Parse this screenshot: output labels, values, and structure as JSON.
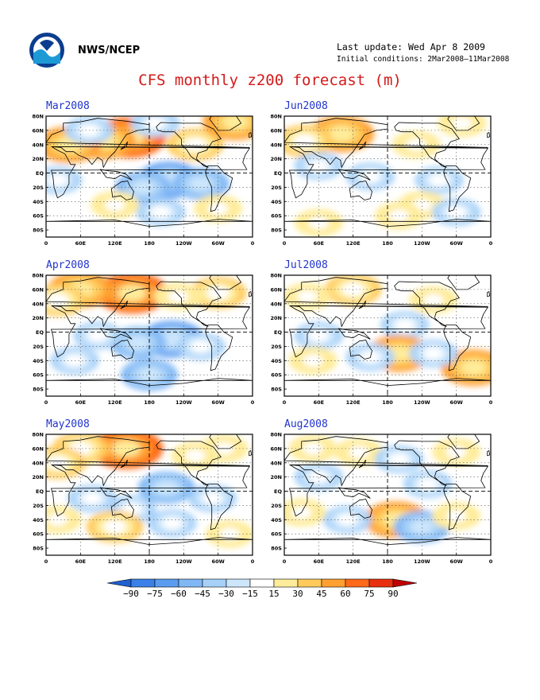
{
  "header": {
    "agency": "NWS/NCEP",
    "last_update": "Last update: Wed Apr 8 2009",
    "initial_conditions": "Initial conditions: 2Mar2008–11Mar2008",
    "title": "CFS monthly z200 forecast (m)"
  },
  "colors": {
    "land_outline": "#000000",
    "title": "#d41a1a",
    "panel_title": "#2233cc"
  },
  "map_axis": {
    "lat_labels": [
      "80N",
      "60N",
      "40N",
      "20N",
      "EQ",
      "20S",
      "40S",
      "60S",
      "80S"
    ],
    "lon_labels": [
      "0",
      "60E",
      "120E",
      "180",
      "120W",
      "60W",
      "0"
    ]
  },
  "panels": [
    {
      "label": "Mar2008",
      "anomalies": [
        {
          "lon": 145,
          "lat": 50,
          "v": 75
        },
        {
          "lon": 100,
          "lat": 45,
          "v": 60
        },
        {
          "lon": 40,
          "lat": 40,
          "v": 60
        },
        {
          "lon": 75,
          "lat": 60,
          "v": -30
        },
        {
          "lon": 260,
          "lat": 40,
          "v": 45
        },
        {
          "lon": 330,
          "lat": 72,
          "v": 60
        },
        {
          "lon": 190,
          "lat": 70,
          "v": -30
        },
        {
          "lon": 215,
          "lat": -10,
          "v": -60
        },
        {
          "lon": 270,
          "lat": -15,
          "v": -45
        },
        {
          "lon": 170,
          "lat": -20,
          "v": -45
        },
        {
          "lon": 200,
          "lat": -55,
          "v": -30
        },
        {
          "lon": 120,
          "lat": -45,
          "v": 30
        },
        {
          "lon": 300,
          "lat": -50,
          "v": 30
        },
        {
          "lon": 20,
          "lat": -10,
          "v": -30
        }
      ]
    },
    {
      "label": "Jun2008",
      "anomalies": [
        {
          "lon": 100,
          "lat": 55,
          "v": 60
        },
        {
          "lon": 35,
          "lat": 45,
          "v": 45
        },
        {
          "lon": 230,
          "lat": 40,
          "v": 30
        },
        {
          "lon": 310,
          "lat": 70,
          "v": 30
        },
        {
          "lon": 60,
          "lat": 10,
          "v": -30
        },
        {
          "lon": 150,
          "lat": -5,
          "v": -30
        },
        {
          "lon": 270,
          "lat": -10,
          "v": -30
        },
        {
          "lon": 240,
          "lat": -45,
          "v": 30
        },
        {
          "lon": 60,
          "lat": -70,
          "v": 30
        },
        {
          "lon": 300,
          "lat": -55,
          "v": -30
        },
        {
          "lon": 200,
          "lat": -60,
          "v": 30
        }
      ]
    },
    {
      "label": "Apr2008",
      "anomalies": [
        {
          "lon": 150,
          "lat": 55,
          "v": 75
        },
        {
          "lon": 60,
          "lat": 60,
          "v": 60
        },
        {
          "lon": 20,
          "lat": 45,
          "v": 45
        },
        {
          "lon": 300,
          "lat": 55,
          "v": 45
        },
        {
          "lon": 230,
          "lat": 50,
          "v": 30
        },
        {
          "lon": 220,
          "lat": -10,
          "v": -60
        },
        {
          "lon": 160,
          "lat": -15,
          "v": -45
        },
        {
          "lon": 90,
          "lat": -5,
          "v": -30
        },
        {
          "lon": 270,
          "lat": -20,
          "v": -30
        },
        {
          "lon": 50,
          "lat": -40,
          "v": -30
        },
        {
          "lon": 180,
          "lat": -60,
          "v": -45
        }
      ]
    },
    {
      "label": "Jul2008",
      "anomalies": [
        {
          "lon": 120,
          "lat": 60,
          "v": 45
        },
        {
          "lon": 40,
          "lat": 50,
          "v": 30
        },
        {
          "lon": 260,
          "lat": 45,
          "v": 30
        },
        {
          "lon": 210,
          "lat": 10,
          "v": -30
        },
        {
          "lon": 60,
          "lat": -5,
          "v": -30
        },
        {
          "lon": 200,
          "lat": -30,
          "v": 60
        },
        {
          "lon": 330,
          "lat": -50,
          "v": 60
        },
        {
          "lon": 150,
          "lat": -35,
          "v": -30
        },
        {
          "lon": 50,
          "lat": -40,
          "v": 30
        },
        {
          "lon": 260,
          "lat": -30,
          "v": -30
        }
      ]
    },
    {
      "label": "May2008",
      "anomalies": [
        {
          "lon": 140,
          "lat": 60,
          "v": 75
        },
        {
          "lon": 60,
          "lat": 60,
          "v": 45
        },
        {
          "lon": 20,
          "lat": 40,
          "v": 45
        },
        {
          "lon": 310,
          "lat": 60,
          "v": 30
        },
        {
          "lon": 260,
          "lat": 50,
          "v": 30
        },
        {
          "lon": 210,
          "lat": 5,
          "v": -45
        },
        {
          "lon": 150,
          "lat": -25,
          "v": -30
        },
        {
          "lon": 80,
          "lat": -10,
          "v": -30
        },
        {
          "lon": 290,
          "lat": -10,
          "v": -30
        },
        {
          "lon": 120,
          "lat": -50,
          "v": 45
        },
        {
          "lon": 220,
          "lat": -45,
          "v": -30
        },
        {
          "lon": 20,
          "lat": -40,
          "v": 30
        },
        {
          "lon": 320,
          "lat": -60,
          "v": 30
        }
      ]
    },
    {
      "label": "Aug2008",
      "anomalies": [
        {
          "lon": 130,
          "lat": 55,
          "v": 30
        },
        {
          "lon": 50,
          "lat": 60,
          "v": 30
        },
        {
          "lon": 300,
          "lat": 55,
          "v": 30
        },
        {
          "lon": 200,
          "lat": 45,
          "v": -30
        },
        {
          "lon": 60,
          "lat": 20,
          "v": -30
        },
        {
          "lon": 250,
          "lat": 10,
          "v": -30
        },
        {
          "lon": 195,
          "lat": -40,
          "v": 60
        },
        {
          "lon": 240,
          "lat": -50,
          "v": -45
        },
        {
          "lon": 110,
          "lat": -40,
          "v": -30
        },
        {
          "lon": 300,
          "lat": -35,
          "v": 30
        },
        {
          "lon": 30,
          "lat": -30,
          "v": 30
        }
      ]
    }
  ],
  "colorbar": {
    "labels": [
      "-90",
      "-75",
      "-60",
      "-45",
      "-30",
      "-15",
      "15",
      "30",
      "45",
      "60",
      "75",
      "90"
    ],
    "colors": [
      "#2060d0",
      "#3a80e8",
      "#5a9cf0",
      "#80b8f5",
      "#a6d0f8",
      "#cce6fc",
      "#ffffff",
      "#ffec9a",
      "#ffca5a",
      "#ffa030",
      "#ff6a18",
      "#e83010",
      "#c00000"
    ]
  }
}
